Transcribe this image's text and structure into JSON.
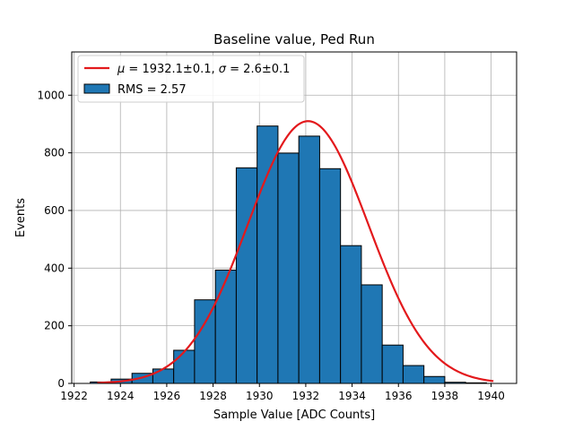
{
  "chart_data": {
    "type": "bar",
    "title": "Baseline value, Ped Run",
    "xlabel": "Sample Value [ADC Counts]",
    "ylabel": "Events",
    "xlim": [
      1921.9,
      1941.1
    ],
    "ylim": [
      0,
      1150
    ],
    "grid": true,
    "legend_position": "top-left",
    "xticks": [
      1922,
      1924,
      1926,
      1928,
      1930,
      1932,
      1934,
      1936,
      1938,
      1940
    ],
    "yticks": [
      0,
      200,
      400,
      600,
      800,
      1000
    ],
    "bar_color": "#1f77b4",
    "bar_edge_color": "#000000",
    "fit_color": "#e3191c",
    "histogram": {
      "name": "RMS = 2.57",
      "bin_edges": [
        1922.7,
        1923.6,
        1924.5,
        1925.4,
        1926.3,
        1927.2,
        1928.1,
        1929.0,
        1929.9,
        1930.8,
        1931.7,
        1932.6,
        1933.5,
        1934.4,
        1935.3,
        1936.2,
        1937.1,
        1938.0,
        1938.9,
        1939.8
      ],
      "counts": [
        5,
        15,
        35,
        50,
        115,
        290,
        393,
        748,
        893,
        799,
        858,
        745,
        478,
        342,
        133,
        62,
        24,
        4,
        2
      ]
    },
    "fit": {
      "name": "μ = 1932.1±0.1, σ = 2.6±0.1",
      "legend_parts": [
        "μ",
        " = 1932.1±0.1, ",
        "σ",
        " = 2.6±0.1"
      ],
      "mu": 1932.1,
      "sigma": 2.6,
      "amplitude": 910,
      "x_range": [
        1923,
        1940.1
      ]
    }
  }
}
